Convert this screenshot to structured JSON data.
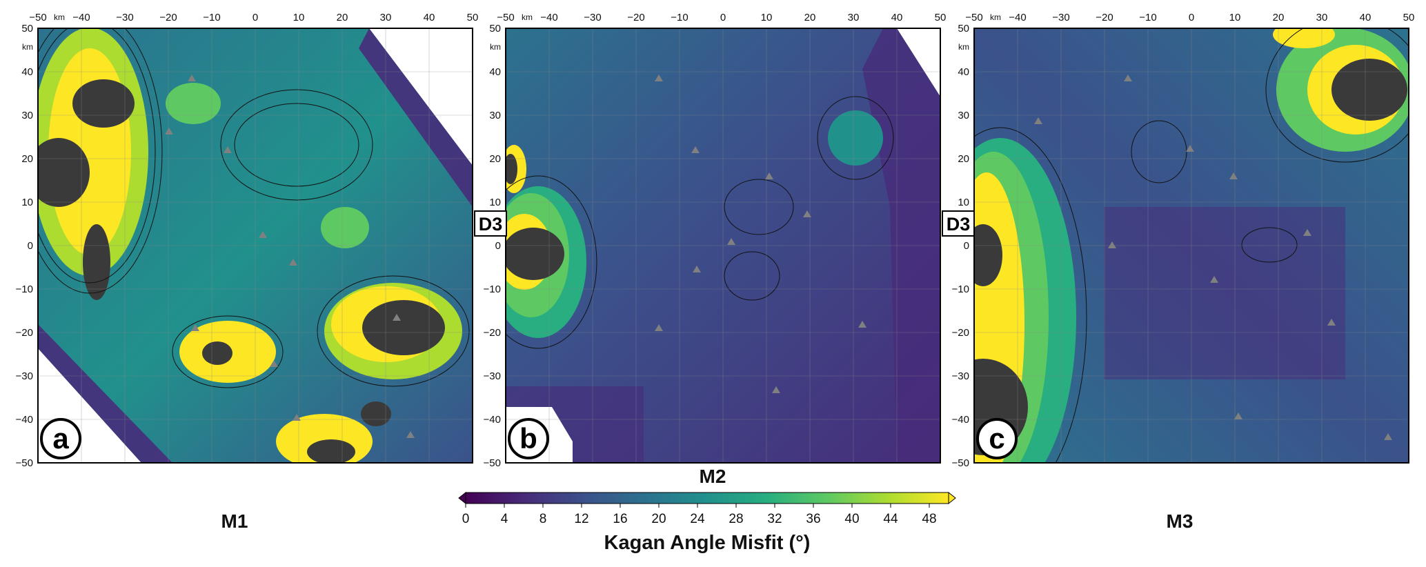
{
  "figure": {
    "colorbar": {
      "title": "Kagan Angle Misfit (°)",
      "ticks": [
        "0",
        "4",
        "8",
        "12",
        "16",
        "20",
        "24",
        "28",
        "32",
        "36",
        "40",
        "44",
        "48"
      ],
      "range": [
        0,
        50
      ],
      "colors": [
        "#440154",
        "#472c7a",
        "#3b528b",
        "#2c728e",
        "#21918c",
        "#28ae80",
        "#5ec962",
        "#addc30",
        "#fde725"
      ]
    },
    "axes": {
      "x_ticks": [
        "−50",
        "−40",
        "−30",
        "−20",
        "−10",
        "0",
        "10",
        "20",
        "30",
        "40",
        "50"
      ],
      "y_ticks": [
        "50",
        "40",
        "30",
        "20",
        "10",
        "0",
        "−10",
        "−20",
        "−30",
        "−40",
        "−50"
      ],
      "x_unit": "km",
      "y_unit": "km"
    },
    "panels": [
      {
        "id": "a",
        "badge": "a",
        "model": "M1",
        "d3": ""
      },
      {
        "id": "b",
        "badge": "b",
        "model": "M2",
        "d3": "D3"
      },
      {
        "id": "c",
        "badge": "c",
        "model": "M3",
        "d3": "D3"
      }
    ]
  }
}
